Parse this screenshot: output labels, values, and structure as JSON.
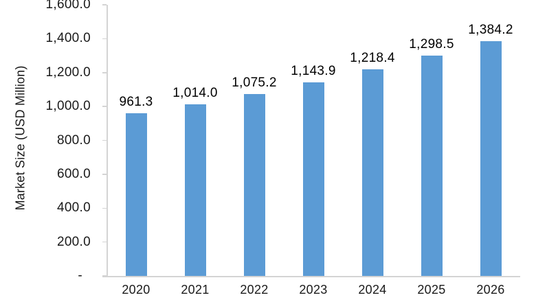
{
  "chart_data": {
    "type": "bar",
    "title": "",
    "xlabel": "",
    "ylabel": "Market Size (USD Million)",
    "categories": [
      "2020",
      "2021",
      "2022",
      "2023",
      "2024",
      "2025",
      "2026"
    ],
    "values": [
      961.3,
      1014.0,
      1075.2,
      1143.9,
      1218.4,
      1298.5,
      1384.2
    ],
    "value_labels": [
      "961.3",
      "1,014.0",
      "1,075.2",
      "1,143.9",
      "1,218.4",
      "1,298.5",
      "1,384.2"
    ],
    "ylim": [
      0,
      1600
    ],
    "ytick_step": 200,
    "ytick_labels_top_to_bottom": [
      "1,600.0",
      "1,400.0",
      "1,200.0",
      "1,000.0",
      "800.0",
      "600.0",
      "400.0",
      "200.0",
      "-"
    ],
    "grid": false,
    "legend": "none",
    "colors": {
      "bar": "#5B9BD5",
      "axis": "#D4D4D4",
      "text": "#1A1A1A"
    }
  }
}
